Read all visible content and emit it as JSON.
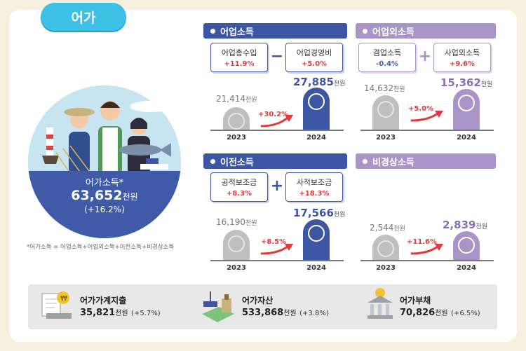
{
  "tab": {
    "title": "어가"
  },
  "household": {
    "label": "어가소득*",
    "value": "63,652",
    "unit": "천원",
    "change": "(+16.2%)",
    "note": "*어가소득 = 어업소득+어업외소득+이전소득+비경상소득"
  },
  "sections": {
    "fishing": {
      "title": "어업소득",
      "items": [
        {
          "label": "어업총수입",
          "change": "+11.9%"
        },
        {
          "label": "어업경영비",
          "change": "+5.0%"
        }
      ],
      "operator": "−",
      "prev": {
        "year": "2023",
        "value": "21,414",
        "unit": "천원"
      },
      "curr": {
        "year": "2024",
        "value": "27,885",
        "unit": "천원"
      },
      "growth": "+30.2%"
    },
    "nonfishing": {
      "title": "어업외소득",
      "items": [
        {
          "label": "겸업소득",
          "change": "-0.4%"
        },
        {
          "label": "사업외소득",
          "change": "+9.6%"
        }
      ],
      "operator": "+",
      "prev": {
        "year": "2023",
        "value": "14,632",
        "unit": "천원"
      },
      "curr": {
        "year": "2024",
        "value": "15,362",
        "unit": "천원"
      },
      "growth": "+5.0%"
    },
    "transfer": {
      "title": "이전소득",
      "items": [
        {
          "label": "공적보조금",
          "change": "+8.3%"
        },
        {
          "label": "사적보조금",
          "change": "+18.3%"
        }
      ],
      "operator": "+",
      "prev": {
        "year": "2023",
        "value": "16,190",
        "unit": "천원"
      },
      "curr": {
        "year": "2024",
        "value": "17,566",
        "unit": "천원"
      },
      "growth": "+8.5%"
    },
    "irregular": {
      "title": "비경상소득",
      "prev": {
        "year": "2023",
        "value": "2,544",
        "unit": "천원"
      },
      "curr": {
        "year": "2024",
        "value": "2,839",
        "unit": "천원"
      },
      "growth": "+11.6%"
    }
  },
  "bottom": {
    "expense": {
      "label": "어가가계지출",
      "value": "35,821",
      "unit": "천원",
      "change": "(+5.7%)"
    },
    "assets": {
      "label": "어가자산",
      "value": "533,868",
      "unit": "천원",
      "change": "(+3.8%)"
    },
    "debt": {
      "label": "어가부채",
      "value": "70,826",
      "unit": "천원",
      "change": "(+6.5%)"
    }
  },
  "colors": {
    "blue": "#3d56a3",
    "purple": "#a894c6",
    "accent": "#3cc0e6",
    "up": "#e03a3a",
    "down": "#3a5bc0"
  },
  "icons": [
    "fisher-family-illustration",
    "fish-icon",
    "arrow-up-icon",
    "receipt-coin-icon",
    "boat-assets-icon",
    "bank-debt-icon"
  ]
}
